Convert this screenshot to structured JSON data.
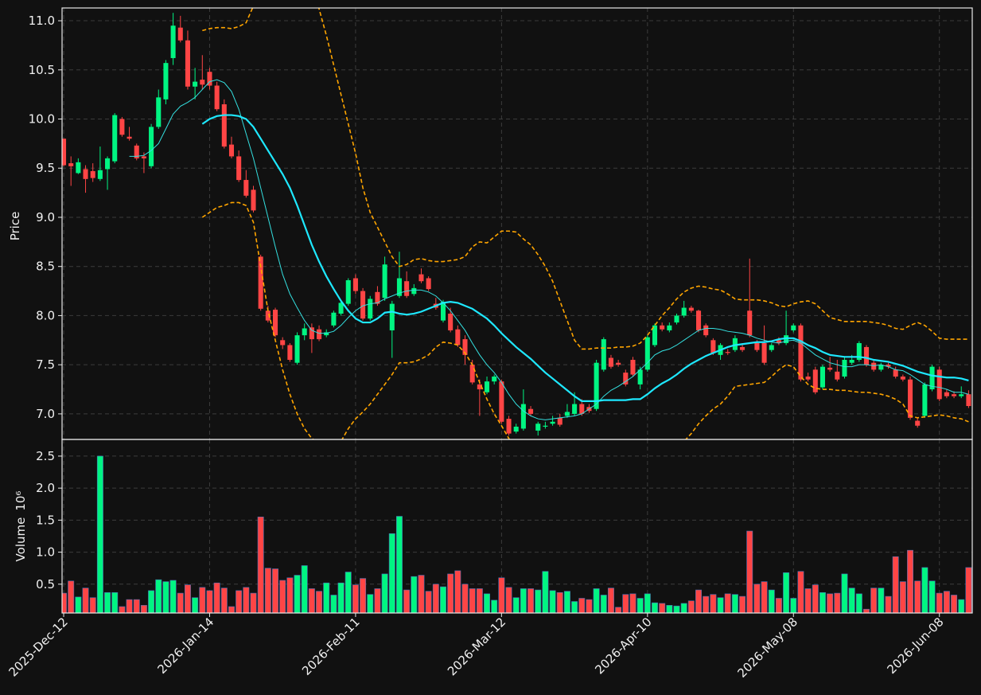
{
  "chart_data": {
    "type": "candlestick",
    "ylabel": "Price",
    "volume_label": "Volume",
    "volume_scale_label": "10⁶",
    "up_color": "#00f582",
    "down_color": "#ff4545",
    "grid": true,
    "xlim": [
      -0.22,
      124.5
    ],
    "xticks": [
      {
        "value": 0,
        "label": "2025-Dec-12"
      },
      {
        "value": 20,
        "label": "2026-Jan-14"
      },
      {
        "value": 40,
        "label": "2026-Feb-11"
      },
      {
        "value": 60,
        "label": "2026-Mar-12"
      },
      {
        "value": 80,
        "label": "2026-Apr-10"
      },
      {
        "value": 100,
        "label": "2026-May-08"
      },
      {
        "value": 120,
        "label": "2026-Jun-08"
      }
    ],
    "ylim": [
      6.74,
      11.13
    ],
    "yticks": [
      {
        "value": 7,
        "label": "7.0"
      },
      7.5,
      {
        "value": 8,
        "label": "8.0"
      },
      8.5,
      {
        "value": 9,
        "label": "9.0"
      },
      9.5,
      {
        "value": 10,
        "label": "10.0"
      },
      10.5,
      {
        "value": 11,
        "label": "11.0"
      }
    ],
    "volume_ylim": [
      0.05,
      2.76
    ],
    "volume_yticks": [
      0.5,
      {
        "value": 1,
        "label": "1.0"
      },
      1.5,
      {
        "value": 2,
        "label": "2.0"
      },
      2.5
    ],
    "open": [
      9.8,
      9.55,
      9.45,
      9.49,
      9.47,
      9.39,
      9.49,
      9.57,
      10.0,
      9.82,
      9.73,
      9.62,
      9.52,
      9.92,
      10.2,
      10.62,
      10.93,
      10.8,
      10.33,
      10.4,
      10.48,
      10.34,
      10.15,
      9.74,
      9.62,
      9.38,
      9.28,
      8.6,
      8.05,
      8.06,
      7.75,
      7.7,
      7.52,
      7.8,
      7.88,
      7.86,
      7.8,
      7.9,
      8.02,
      8.12,
      8.38,
      8.25,
      7.97,
      8.24,
      8.18,
      7.85,
      8.2,
      8.35,
      8.22,
      8.42,
      8.38,
      8.12,
      7.95,
      8.02,
      7.86,
      7.76,
      7.5,
      7.3,
      7.22,
      7.33,
      7.33,
      6.95,
      6.82,
      6.85,
      7.05,
      6.83,
      6.87,
      6.9,
      6.96,
      6.98,
      7.0,
      7.1,
      7.07,
      7.05,
      7.45,
      7.57,
      7.52,
      7.42,
      7.55,
      7.3,
      7.45,
      7.7,
      7.9,
      7.85,
      7.93,
      8.0,
      8.08,
      8.05,
      7.9,
      7.75,
      7.6,
      7.63,
      7.65,
      7.68,
      8.05,
      7.72,
      7.72,
      7.65,
      7.75,
      7.72,
      7.85,
      7.9,
      7.38,
      7.45,
      7.27,
      7.47,
      7.43,
      7.38,
      7.52,
      7.55,
      7.68,
      7.52,
      7.45,
      7.5,
      7.45,
      7.38,
      7.35,
      6.93,
      6.98,
      7.25,
      7.45,
      7.22,
      7.2,
      7.18,
      7.2
    ],
    "high": [
      9.8,
      9.62,
      9.6,
      9.53,
      9.55,
      9.72,
      9.62,
      10.06,
      10.02,
      9.92,
      9.75,
      9.66,
      9.95,
      10.3,
      10.6,
      11.08,
      11.05,
      10.9,
      10.52,
      10.65,
      10.52,
      10.38,
      10.2,
      9.82,
      9.68,
      9.48,
      9.32,
      8.62,
      8.1,
      8.08,
      7.78,
      7.72,
      7.83,
      7.92,
      7.92,
      7.9,
      7.86,
      8.05,
      8.16,
      8.38,
      8.42,
      8.28,
      8.2,
      8.3,
      8.6,
      8.15,
      8.65,
      8.45,
      8.32,
      8.48,
      8.4,
      8.18,
      8.16,
      8.08,
      7.9,
      7.8,
      7.55,
      7.35,
      7.38,
      7.4,
      7.35,
      6.98,
      6.9,
      7.25,
      7.08,
      6.92,
      6.92,
      6.98,
      7.0,
      7.1,
      7.22,
      7.15,
      7.1,
      7.55,
      7.78,
      7.6,
      7.55,
      7.45,
      7.58,
      7.48,
      7.8,
      7.92,
      7.93,
      7.93,
      8.02,
      8.15,
      8.1,
      8.06,
      7.92,
      7.77,
      7.72,
      7.66,
      7.8,
      7.72,
      8.58,
      7.75,
      7.9,
      7.72,
      7.78,
      8.05,
      7.92,
      7.92,
      7.42,
      7.48,
      7.5,
      7.58,
      7.55,
      7.58,
      7.6,
      7.74,
      7.7,
      7.55,
      7.52,
      7.52,
      7.48,
      7.4,
      7.38,
      6.96,
      7.32,
      7.5,
      7.48,
      7.25,
      7.23,
      7.28,
      7.24
    ],
    "low": [
      9.52,
      9.32,
      9.44,
      9.25,
      9.36,
      9.37,
      9.28,
      9.55,
      9.82,
      9.78,
      9.58,
      9.45,
      9.5,
      9.9,
      10.15,
      10.55,
      10.78,
      10.3,
      10.2,
      10.3,
      10.3,
      10.08,
      9.7,
      9.6,
      9.36,
      9.2,
      9.05,
      8.05,
      7.93,
      7.78,
      7.66,
      7.53,
      7.5,
      7.75,
      7.62,
      7.74,
      7.78,
      7.88,
      8.0,
      8.1,
      8.22,
      7.95,
      7.95,
      8.1,
      8.15,
      7.57,
      8.18,
      8.18,
      8.2,
      8.33,
      8.25,
      8.06,
      7.93,
      7.83,
      7.68,
      7.5,
      7.3,
      6.98,
      7.2,
      7.3,
      6.9,
      6.78,
      6.8,
      6.83,
      6.98,
      6.78,
      6.85,
      6.88,
      6.87,
      6.96,
      6.98,
      6.98,
      7.01,
      7.03,
      7.43,
      7.46,
      7.48,
      7.28,
      7.38,
      7.25,
      7.43,
      7.68,
      7.84,
      7.83,
      7.91,
      7.98,
      8.03,
      7.83,
      7.78,
      7.6,
      7.55,
      7.6,
      7.63,
      7.63,
      7.78,
      7.63,
      7.5,
      7.63,
      7.7,
      7.7,
      7.83,
      7.33,
      7.33,
      7.2,
      7.25,
      7.43,
      7.33,
      7.36,
      7.5,
      7.53,
      7.48,
      7.43,
      7.43,
      7.46,
      7.36,
      7.33,
      6.94,
      6.86,
      6.96,
      7.23,
      7.13,
      7.16,
      7.16,
      7.16,
      7.06
    ],
    "close": [
      9.53,
      9.52,
      9.56,
      9.39,
      9.4,
      9.48,
      9.6,
      10.04,
      9.84,
      9.8,
      9.6,
      9.6,
      9.92,
      10.22,
      10.57,
      10.95,
      10.8,
      10.33,
      10.38,
      10.35,
      10.34,
      10.1,
      9.72,
      9.62,
      9.38,
      9.22,
      9.07,
      8.07,
      7.95,
      7.8,
      7.7,
      7.55,
      7.8,
      7.87,
      7.76,
      7.76,
      7.83,
      8.03,
      8.13,
      8.36,
      8.25,
      7.97,
      8.17,
      8.12,
      8.52,
      8.12,
      8.38,
      8.2,
      8.28,
      8.35,
      8.27,
      8.08,
      8.14,
      7.85,
      7.7,
      7.6,
      7.32,
      7.25,
      7.33,
      7.38,
      6.92,
      6.8,
      6.87,
      7.1,
      7.0,
      6.9,
      6.88,
      6.92,
      6.89,
      7.02,
      7.1,
      7.0,
      7.03,
      7.52,
      7.76,
      7.48,
      7.5,
      7.3,
      7.4,
      7.45,
      7.78,
      7.9,
      7.86,
      7.9,
      8.0,
      8.08,
      8.05,
      7.85,
      7.8,
      7.62,
      7.7,
      7.62,
      7.77,
      7.65,
      7.8,
      7.65,
      7.52,
      7.7,
      7.72,
      7.8,
      7.9,
      7.35,
      7.35,
      7.22,
      7.48,
      7.45,
      7.35,
      7.55,
      7.55,
      7.72,
      7.5,
      7.45,
      7.5,
      7.48,
      7.38,
      7.35,
      6.96,
      6.88,
      7.3,
      7.48,
      7.15,
      7.18,
      7.18,
      7.2,
      7.08
    ],
    "volume": [
      0.36,
      0.55,
      0.3,
      0.44,
      0.29,
      2.5,
      0.37,
      0.37,
      0.15,
      0.26,
      0.26,
      0.17,
      0.4,
      0.57,
      0.54,
      0.56,
      0.36,
      0.49,
      0.29,
      0.45,
      0.4,
      0.52,
      0.44,
      0.15,
      0.4,
      0.45,
      0.36,
      1.55,
      0.75,
      0.74,
      0.56,
      0.6,
      0.64,
      0.79,
      0.43,
      0.39,
      0.52,
      0.33,
      0.52,
      0.69,
      0.49,
      0.59,
      0.34,
      0.43,
      0.66,
      1.29,
      1.56,
      0.41,
      0.62,
      0.64,
      0.39,
      0.5,
      0.46,
      0.66,
      0.71,
      0.5,
      0.43,
      0.43,
      0.35,
      0.25,
      0.6,
      0.45,
      0.29,
      0.43,
      0.43,
      0.41,
      0.7,
      0.4,
      0.37,
      0.39,
      0.23,
      0.28,
      0.26,
      0.43,
      0.33,
      0.44,
      0.14,
      0.34,
      0.35,
      0.28,
      0.35,
      0.21,
      0.2,
      0.17,
      0.16,
      0.2,
      0.24,
      0.41,
      0.31,
      0.34,
      0.29,
      0.35,
      0.34,
      0.31,
      1.33,
      0.5,
      0.54,
      0.41,
      0.28,
      0.68,
      0.28,
      0.7,
      0.43,
      0.49,
      0.37,
      0.35,
      0.36,
      0.66,
      0.44,
      0.35,
      0.11,
      0.44,
      0.44,
      0.31,
      0.93,
      0.54,
      1.03,
      0.55,
      0.76,
      0.55,
      0.36,
      0.39,
      0.33,
      0.26,
      0.76
    ],
    "overlays": [
      {
        "style": "thin",
        "color": "#34e0e0",
        "values": [
          null,
          null,
          null,
          null,
          null,
          null,
          null,
          null,
          null,
          9.62,
          9.62,
          9.63,
          9.68,
          9.75,
          9.9,
          10.05,
          10.13,
          10.17,
          10.22,
          10.3,
          10.38,
          10.4,
          10.37,
          10.28,
          10.1,
          9.85,
          9.6,
          9.3,
          9.0,
          8.7,
          8.42,
          8.22,
          8.08,
          7.95,
          7.85,
          7.82,
          7.82,
          7.84,
          7.9,
          7.98,
          8.05,
          8.1,
          8.12,
          8.13,
          8.17,
          8.2,
          8.23,
          8.25,
          8.26,
          8.26,
          8.24,
          8.2,
          8.13,
          8.05,
          7.95,
          7.85,
          7.72,
          7.6,
          7.5,
          7.42,
          7.32,
          7.2,
          7.1,
          7.03,
          6.98,
          6.95,
          6.94,
          6.95,
          6.96,
          6.97,
          6.98,
          7.0,
          7.05,
          7.1,
          7.18,
          7.24,
          7.28,
          7.33,
          7.38,
          7.45,
          7.52,
          7.6,
          7.64,
          7.66,
          7.7,
          7.75,
          7.8,
          7.85,
          7.87,
          7.87,
          7.86,
          7.84,
          7.83,
          7.82,
          7.8,
          7.77,
          7.75,
          7.73,
          7.72,
          7.74,
          7.75,
          7.72,
          7.66,
          7.6,
          7.56,
          7.52,
          7.5,
          7.48,
          7.48,
          7.5,
          7.5,
          7.49,
          7.5,
          7.48,
          7.45,
          7.44,
          7.4,
          7.35,
          7.3,
          7.28,
          7.27,
          7.25,
          7.22,
          7.22,
          7.2
        ]
      },
      {
        "style": "thick",
        "color": "#1ee8ff",
        "values": [
          null,
          null,
          null,
          null,
          null,
          null,
          null,
          null,
          null,
          null,
          null,
          null,
          null,
          null,
          null,
          null,
          null,
          null,
          null,
          9.95,
          10.0,
          10.03,
          10.04,
          10.04,
          10.03,
          10.0,
          9.92,
          9.8,
          9.68,
          9.56,
          9.44,
          9.3,
          9.12,
          8.92,
          8.72,
          8.55,
          8.4,
          8.27,
          8.15,
          8.05,
          7.97,
          7.93,
          7.93,
          7.97,
          8.03,
          8.04,
          8.02,
          8.01,
          8.02,
          8.04,
          8.07,
          8.1,
          8.13,
          8.14,
          8.13,
          8.1,
          8.07,
          8.02,
          7.97,
          7.9,
          7.82,
          7.75,
          7.68,
          7.62,
          7.56,
          7.49,
          7.42,
          7.36,
          7.3,
          7.24,
          7.18,
          7.13,
          7.13,
          7.13,
          7.14,
          7.14,
          7.14,
          7.14,
          7.15,
          7.15,
          7.2,
          7.26,
          7.31,
          7.35,
          7.4,
          7.46,
          7.51,
          7.55,
          7.59,
          7.62,
          7.65,
          7.68,
          7.7,
          7.71,
          7.72,
          7.73,
          7.73,
          7.74,
          7.76,
          7.77,
          7.77,
          7.74,
          7.7,
          7.67,
          7.63,
          7.6,
          7.59,
          7.58,
          7.58,
          7.58,
          7.57,
          7.55,
          7.54,
          7.53,
          7.51,
          7.49,
          7.46,
          7.43,
          7.41,
          7.39,
          7.38,
          7.37,
          7.37,
          7.36,
          7.34
        ]
      },
      {
        "style": "dashed",
        "color": "#ffa500",
        "values": [
          null,
          null,
          null,
          null,
          null,
          null,
          null,
          null,
          null,
          null,
          null,
          null,
          null,
          null,
          null,
          null,
          null,
          null,
          null,
          10.9,
          10.92,
          10.93,
          10.93,
          10.92,
          10.94,
          10.98,
          11.15,
          11.45,
          11.75,
          11.95,
          12.05,
          12.0,
          11.85,
          11.6,
          11.35,
          11.12,
          10.85,
          10.55,
          10.25,
          9.95,
          9.65,
          9.3,
          9.05,
          8.9,
          8.75,
          8.6,
          8.5,
          8.52,
          8.57,
          8.58,
          8.56,
          8.55,
          8.55,
          8.56,
          8.57,
          8.6,
          8.7,
          8.75,
          8.74,
          8.8,
          8.86,
          8.86,
          8.85,
          8.78,
          8.72,
          8.62,
          8.5,
          8.35,
          8.15,
          7.95,
          7.75,
          7.66,
          7.66,
          7.67,
          7.67,
          7.67,
          7.68,
          7.68,
          7.69,
          7.72,
          7.8,
          7.9,
          8.0,
          8.08,
          8.17,
          8.24,
          8.28,
          8.3,
          8.29,
          8.27,
          8.26,
          8.22,
          8.17,
          8.16,
          8.16,
          8.16,
          8.15,
          8.13,
          8.1,
          8.09,
          8.12,
          8.14,
          8.15,
          8.12,
          8.05,
          7.98,
          7.96,
          7.94,
          7.94,
          7.94,
          7.94,
          7.93,
          7.92,
          7.9,
          7.87,
          7.86,
          7.9,
          7.93,
          7.9,
          7.84,
          7.77,
          7.76,
          7.76,
          7.76,
          7.76
        ]
      },
      {
        "style": "dashed",
        "color": "#ffa500",
        "values": [
          null,
          null,
          null,
          null,
          null,
          null,
          null,
          null,
          null,
          null,
          null,
          null,
          null,
          null,
          null,
          null,
          null,
          null,
          null,
          9.0,
          9.05,
          9.1,
          9.12,
          9.15,
          9.15,
          9.12,
          8.95,
          8.5,
          8.05,
          7.75,
          7.45,
          7.2,
          7.0,
          6.85,
          6.75,
          6.7,
          6.68,
          6.68,
          6.72,
          6.85,
          6.95,
          7.02,
          7.1,
          7.2,
          7.3,
          7.4,
          7.52,
          7.52,
          7.53,
          7.56,
          7.6,
          7.68,
          7.73,
          7.72,
          7.7,
          7.62,
          7.5,
          7.32,
          7.15,
          7.0,
          6.88,
          6.75,
          6.65,
          6.55,
          6.45,
          6.35,
          6.28,
          6.22,
          6.2,
          6.22,
          6.3,
          6.4,
          6.45,
          6.45,
          6.45,
          6.45,
          6.45,
          6.45,
          6.45,
          6.45,
          6.45,
          6.48,
          6.52,
          6.58,
          6.65,
          6.72,
          6.8,
          6.9,
          6.98,
          7.05,
          7.1,
          7.18,
          7.28,
          7.29,
          7.3,
          7.31,
          7.32,
          7.38,
          7.45,
          7.5,
          7.48,
          7.38,
          7.3,
          7.26,
          7.25,
          7.25,
          7.24,
          7.24,
          7.23,
          7.22,
          7.22,
          7.21,
          7.2,
          7.18,
          7.15,
          7.1,
          6.98,
          6.96,
          6.97,
          6.98,
          6.99,
          6.98,
          6.96,
          6.95,
          6.92
        ]
      }
    ]
  }
}
